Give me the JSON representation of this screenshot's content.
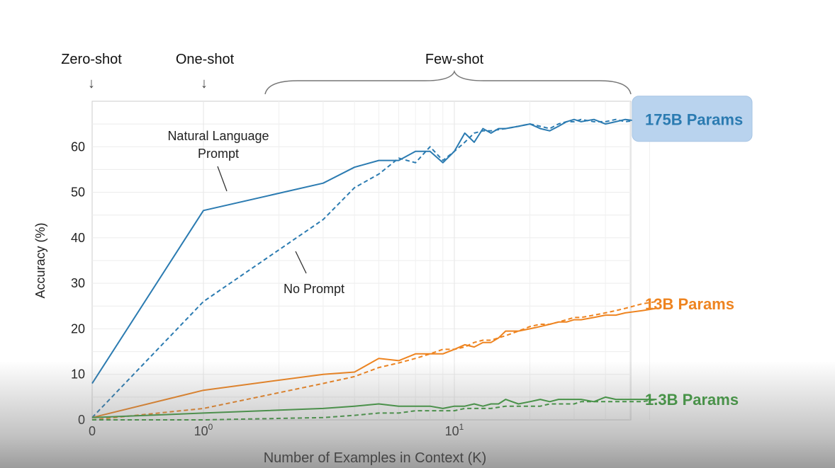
{
  "chart_data": {
    "type": "line",
    "xscale": "symlog",
    "xlabel": "Number of Examples in Context  (K)",
    "ylabel": "Accuracy (%)",
    "ylim": [
      0,
      70
    ],
    "xlim": [
      0,
      64
    ],
    "yticks": [
      0,
      10,
      20,
      30,
      40,
      50,
      60
    ],
    "xticks": [
      {
        "value": 0,
        "label": "0"
      },
      {
        "value": 1,
        "base": "10",
        "exp": "0"
      },
      {
        "value": 10,
        "base": "10",
        "exp": "1"
      }
    ],
    "grid": true,
    "top_annotations": {
      "zero_shot": "Zero-shot",
      "one_shot": "One-shot",
      "few_shot": "Few-shot",
      "arrow": "↓"
    },
    "annotations": {
      "natural_language_prompt": [
        "Natural Language",
        "Prompt"
      ],
      "no_prompt": "No Prompt"
    },
    "series": [
      {
        "name": "175B Params",
        "group": "175B",
        "style": "solid",
        "color": "#2b7bb1",
        "x": [
          0,
          1,
          3,
          4,
          5,
          6,
          7,
          8,
          9,
          10,
          11,
          12,
          13,
          14,
          15,
          16,
          18,
          20,
          22,
          24,
          26,
          28,
          30,
          32,
          36,
          40,
          44,
          48,
          56,
          64
        ],
        "y": [
          8,
          46,
          52,
          55.5,
          57,
          57,
          59,
          59,
          56.5,
          59,
          63,
          61,
          64,
          63,
          64,
          64,
          64.5,
          65,
          64,
          63.5,
          64.5,
          65.5,
          66,
          65.5,
          66,
          65,
          65.5,
          66,
          65.5,
          66.5
        ]
      },
      {
        "name": "175B Params",
        "group": "175B",
        "style": "dashed",
        "color": "#2b7bb1",
        "x": [
          0,
          1,
          3,
          4,
          5,
          6,
          7,
          8,
          9,
          10,
          11,
          12,
          13,
          14,
          16,
          18,
          20,
          22,
          24,
          26,
          28,
          30,
          32,
          36,
          40,
          44,
          48,
          56,
          64
        ],
        "y": [
          0.5,
          26,
          44,
          51,
          54,
          57.5,
          56.5,
          60,
          57,
          59,
          61,
          63,
          63.5,
          63.5,
          64,
          64.5,
          65,
          64.5,
          64,
          65,
          65.5,
          65.5,
          66,
          65.5,
          65.5,
          66,
          65.5,
          66,
          66.5
        ]
      },
      {
        "name": "13B Params",
        "group": "13B",
        "style": "solid",
        "color": "#ee8420",
        "x": [
          0,
          1,
          3,
          4,
          5,
          6,
          7,
          8,
          9,
          10,
          11,
          12,
          13,
          14,
          15,
          16,
          18,
          20,
          22,
          24,
          26,
          28,
          30,
          32,
          36,
          40,
          44,
          48,
          56,
          64
        ],
        "y": [
          0.5,
          6.5,
          10,
          10.5,
          13.5,
          13,
          14.5,
          14.5,
          14.5,
          15.5,
          16.5,
          16,
          17,
          17,
          18,
          19.5,
          19.5,
          20,
          20.5,
          21,
          21.5,
          21.5,
          22,
          22,
          22.5,
          23,
          23,
          23.5,
          24,
          24.5
        ]
      },
      {
        "name": "13B Params",
        "group": "13B",
        "style": "dashed",
        "color": "#ee8420",
        "x": [
          0,
          1,
          3,
          4,
          5,
          6,
          7,
          8,
          9,
          10,
          11,
          12,
          13,
          14,
          16,
          18,
          20,
          22,
          24,
          26,
          28,
          30,
          32,
          36,
          40,
          44,
          48,
          56,
          64
        ],
        "y": [
          0,
          2.5,
          8,
          9.5,
          11.5,
          12.5,
          13.5,
          14.5,
          15.5,
          15.5,
          16,
          17,
          17.5,
          17.5,
          18.5,
          19.5,
          20.5,
          21,
          21,
          21.5,
          22,
          22.5,
          22.5,
          23,
          23.5,
          24,
          24.5,
          25.5,
          26
        ]
      },
      {
        "name": "1.3B Params",
        "group": "1.3B",
        "style": "solid",
        "color": "#3a9a3a",
        "x": [
          0,
          1,
          3,
          4,
          5,
          6,
          7,
          8,
          9,
          10,
          11,
          12,
          13,
          14,
          15,
          16,
          18,
          20,
          22,
          24,
          26,
          28,
          30,
          32,
          36,
          40,
          44,
          48,
          56,
          64
        ],
        "y": [
          0.5,
          1.5,
          2.5,
          3,
          3.5,
          3,
          3,
          3,
          2.5,
          3,
          3,
          3.5,
          3,
          3.5,
          3.5,
          4.5,
          3.5,
          4,
          4.5,
          4,
          4.5,
          4.5,
          4.5,
          4.5,
          4,
          5,
          4.5,
          4.5,
          4.5,
          4.5
        ]
      },
      {
        "name": "1.3B Params",
        "group": "1.3B",
        "style": "dashed",
        "color": "#3a9a3a",
        "x": [
          0,
          1,
          3,
          4,
          5,
          6,
          7,
          8,
          9,
          10,
          11,
          12,
          13,
          14,
          16,
          18,
          20,
          22,
          24,
          26,
          28,
          30,
          32,
          36,
          40,
          44,
          48,
          56,
          64
        ],
        "y": [
          0,
          0,
          0.5,
          1,
          1.5,
          1.5,
          2,
          2,
          2,
          2,
          2.5,
          2.5,
          2.5,
          2.5,
          3,
          3,
          3,
          3,
          3.5,
          3.5,
          3.5,
          3.5,
          4,
          4,
          4,
          4,
          4,
          4,
          4.5
        ]
      }
    ],
    "series_labels": [
      {
        "text": "175B Params",
        "color": "#2b7bb1",
        "highlight": true,
        "y": 66
      },
      {
        "text": "13B Params",
        "color": "#ee8420",
        "highlight": false,
        "y": 25.5
      },
      {
        "text": "1.3B Params",
        "color": "#3a9a3a",
        "highlight": false,
        "y": 4.5
      }
    ]
  }
}
